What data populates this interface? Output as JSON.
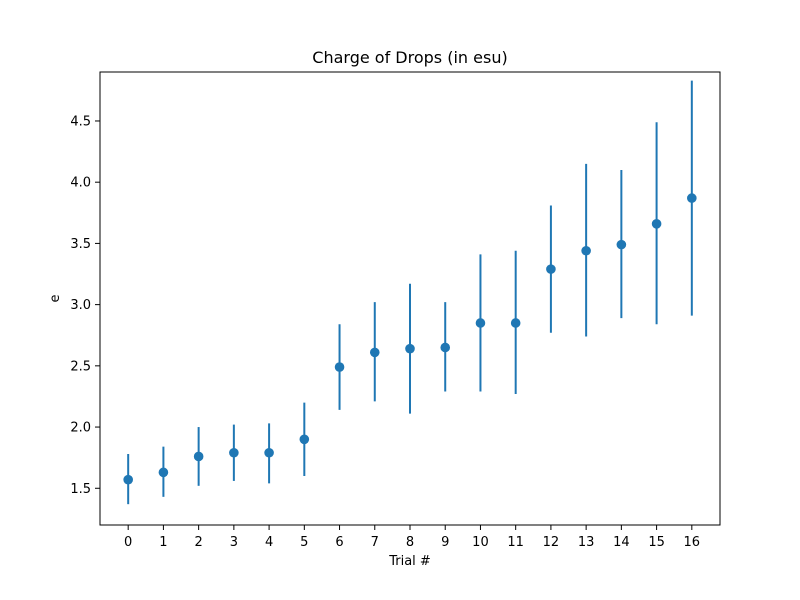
{
  "chart_data": {
    "type": "scatter",
    "title": "Charge of Drops (in esu)",
    "xlabel": "Trial #",
    "ylabel": "e",
    "x": [
      0,
      1,
      2,
      3,
      4,
      5,
      6,
      7,
      8,
      9,
      10,
      11,
      12,
      13,
      14,
      15,
      16
    ],
    "series": [
      {
        "values": [
          1.57,
          1.63,
          1.76,
          1.79,
          1.79,
          1.9,
          2.49,
          2.61,
          2.64,
          2.65,
          2.85,
          2.85,
          3.29,
          3.44,
          3.49,
          3.66,
          3.87
        ],
        "error_low": [
          1.37,
          1.43,
          1.52,
          1.56,
          1.54,
          1.6,
          2.14,
          2.21,
          2.11,
          2.29,
          2.29,
          2.27,
          2.77,
          2.74,
          2.89,
          2.84,
          2.91
        ],
        "error_high": [
          1.78,
          1.84,
          2.0,
          2.02,
          2.03,
          2.2,
          2.84,
          3.02,
          3.17,
          3.02,
          3.41,
          3.44,
          3.81,
          4.15,
          4.1,
          4.49,
          4.83
        ],
        "color": "#1f77b4"
      }
    ],
    "xticks": [
      "0",
      "1",
      "2",
      "3",
      "4",
      "5",
      "6",
      "7",
      "8",
      "9",
      "10",
      "11",
      "12",
      "13",
      "14",
      "15",
      "16"
    ],
    "yticks": [
      "1.5",
      "2.0",
      "2.5",
      "3.0",
      "3.5",
      "4.0",
      "4.5"
    ],
    "ytick_values": [
      1.5,
      2.0,
      2.5,
      3.0,
      3.5,
      4.0,
      4.5
    ],
    "xlim": [
      -0.8,
      16.8
    ],
    "ylim": [
      1.2,
      4.9
    ],
    "grid": false,
    "legend": "none"
  }
}
